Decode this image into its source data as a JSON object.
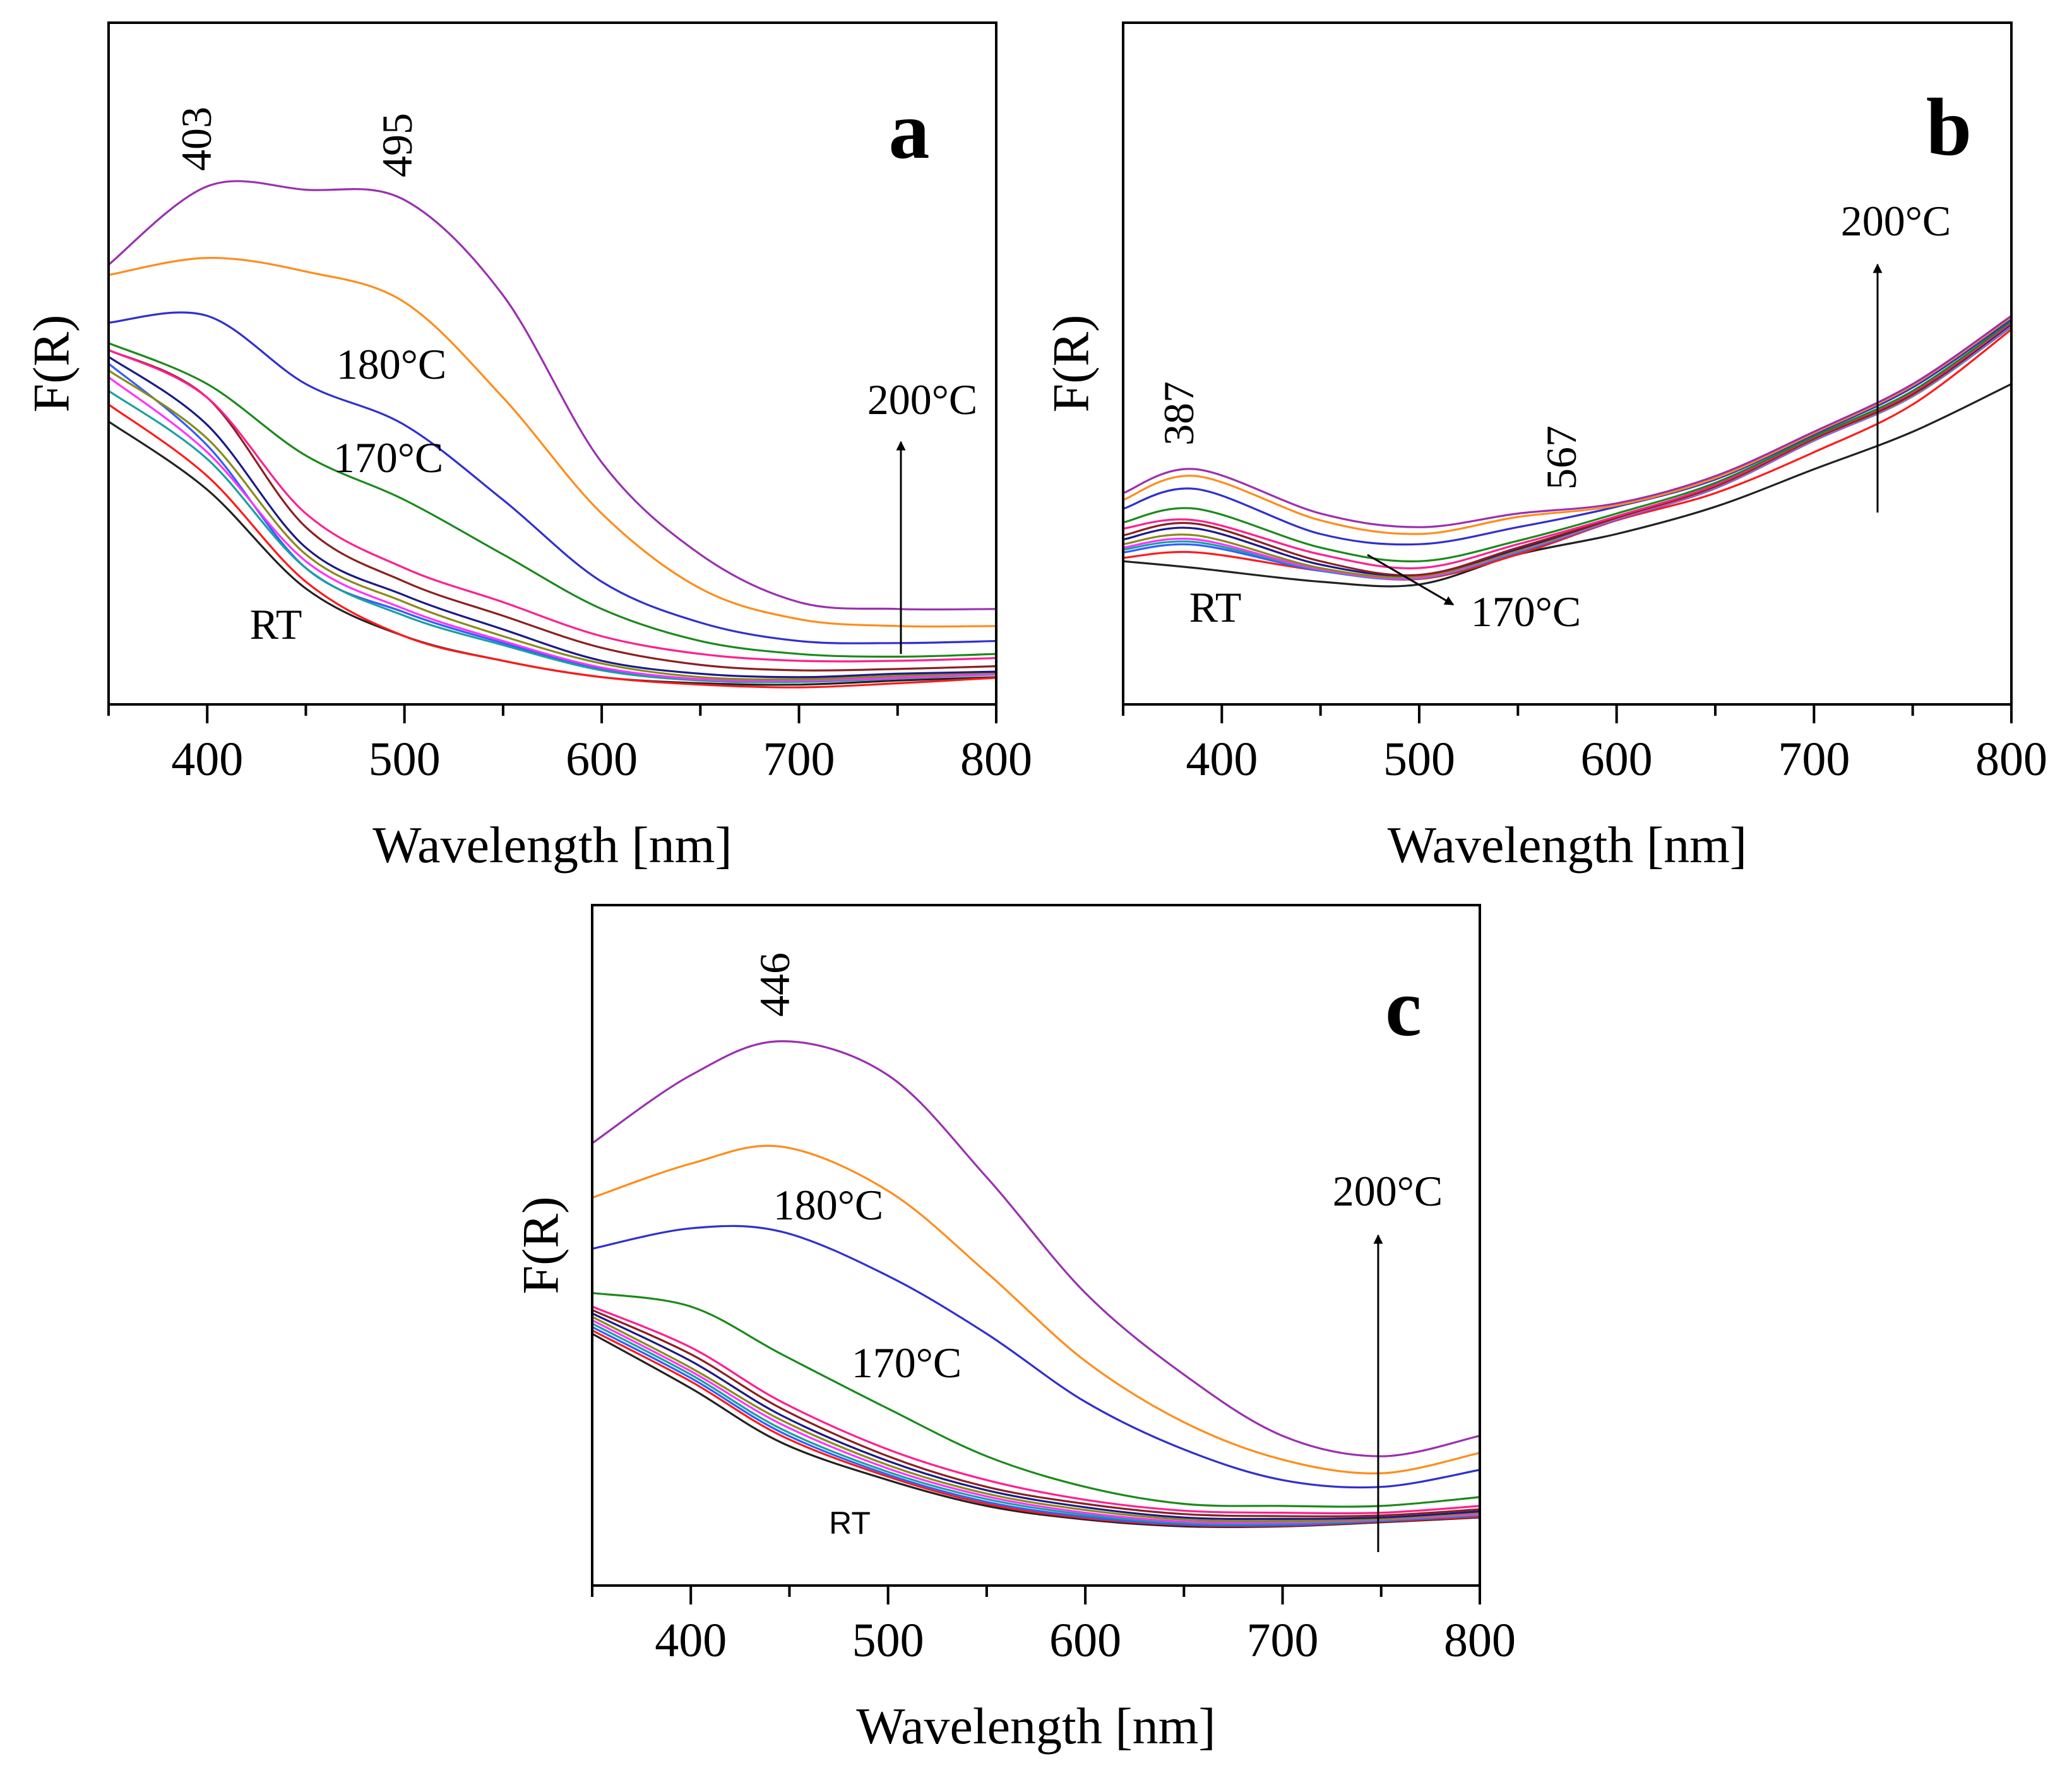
{
  "colors": [
    "#9b30b0",
    "#ff8c1a",
    "#3030d0",
    "#1a8a1a",
    "#ff1f8f",
    "#8b2020",
    "#1a1a8a",
    "#8a8a1a",
    "#ff33ff",
    "#1aa0a0",
    "#2f5fff",
    "#ff1a1a",
    "#222222"
  ],
  "chart_data": [
    {
      "type": "line",
      "panel_label": "a",
      "xlabel": "Wavelength [nm]",
      "ylabel": "F(R)",
      "xlim": [
        350,
        800
      ],
      "ylim": [
        0,
        1
      ],
      "xticks": [
        400,
        500,
        600,
        700,
        800
      ],
      "annotations": {
        "peak1": "403",
        "peak2": "495",
        "t180": "180°C",
        "t170": "170°C",
        "t200": "200°C",
        "rt": "RT"
      },
      "x": [
        350,
        400,
        450,
        500,
        550,
        600,
        650,
        700,
        750,
        800
      ],
      "series": [
        {
          "values": [
            0.645,
            0.76,
            0.755,
            0.74,
            0.6,
            0.355,
            0.22,
            0.15,
            0.14,
            0.14
          ]
        },
        {
          "values": [
            0.63,
            0.655,
            0.635,
            0.59,
            0.45,
            0.28,
            0.17,
            0.125,
            0.115,
            0.115
          ]
        },
        {
          "values": [
            0.56,
            0.57,
            0.47,
            0.41,
            0.3,
            0.18,
            0.12,
            0.093,
            0.09,
            0.093
          ]
        },
        {
          "values": [
            0.53,
            0.47,
            0.365,
            0.3,
            0.22,
            0.14,
            0.093,
            0.074,
            0.07,
            0.074
          ]
        },
        {
          "values": [
            0.52,
            0.45,
            0.28,
            0.2,
            0.15,
            0.1,
            0.074,
            0.064,
            0.064,
            0.068
          ]
        },
        {
          "values": [
            0.52,
            0.45,
            0.26,
            0.18,
            0.13,
            0.083,
            0.058,
            0.05,
            0.052,
            0.056
          ]
        },
        {
          "values": [
            0.51,
            0.41,
            0.23,
            0.16,
            0.11,
            0.064,
            0.045,
            0.04,
            0.045,
            0.048
          ]
        },
        {
          "values": [
            0.49,
            0.39,
            0.22,
            0.15,
            0.1,
            0.06,
            0.04,
            0.037,
            0.042,
            0.047
          ]
        },
        {
          "values": [
            0.48,
            0.37,
            0.21,
            0.14,
            0.093,
            0.054,
            0.037,
            0.035,
            0.039,
            0.045
          ]
        },
        {
          "values": [
            0.46,
            0.36,
            0.2,
            0.13,
            0.087,
            0.05,
            0.035,
            0.033,
            0.038,
            0.044
          ]
        },
        {
          "values": [
            0.5,
            0.38,
            0.2,
            0.135,
            0.09,
            0.052,
            0.036,
            0.034,
            0.04,
            0.046
          ]
        },
        {
          "values": [
            0.44,
            0.335,
            0.18,
            0.1,
            0.064,
            0.04,
            0.029,
            0.025,
            0.031,
            0.039
          ]
        },
        {
          "values": [
            0.415,
            0.315,
            0.17,
            0.1,
            0.064,
            0.04,
            0.031,
            0.029,
            0.035,
            0.04
          ]
        }
      ]
    },
    {
      "type": "line",
      "panel_label": "b",
      "xlabel": "Wavelength [nm]",
      "ylabel": "F(R)",
      "xlim": [
        350,
        800
      ],
      "ylim": [
        0,
        1
      ],
      "xticks": [
        400,
        500,
        600,
        700,
        800
      ],
      "annotations": {
        "peak1": "387",
        "peak2": "567",
        "t200": "200°C",
        "t170": "170°C",
        "rt": "RT"
      },
      "x": [
        350,
        387,
        450,
        500,
        550,
        600,
        650,
        700,
        750,
        800
      ],
      "series": [
        {
          "values": [
            0.31,
            0.345,
            0.28,
            0.26,
            0.28,
            0.295,
            0.335,
            0.4,
            0.47,
            0.57
          ]
        },
        {
          "values": [
            0.3,
            0.335,
            0.27,
            0.25,
            0.275,
            0.292,
            0.332,
            0.398,
            0.468,
            0.568
          ]
        },
        {
          "values": [
            0.287,
            0.316,
            0.25,
            0.235,
            0.26,
            0.29,
            0.33,
            0.396,
            0.465,
            0.565
          ]
        },
        {
          "values": [
            0.267,
            0.287,
            0.23,
            0.21,
            0.24,
            0.28,
            0.325,
            0.393,
            0.46,
            0.562
          ]
        },
        {
          "values": [
            0.258,
            0.27,
            0.22,
            0.2,
            0.235,
            0.276,
            0.322,
            0.392,
            0.458,
            0.56
          ]
        },
        {
          "values": [
            0.248,
            0.265,
            0.21,
            0.19,
            0.23,
            0.274,
            0.32,
            0.39,
            0.455,
            0.56
          ]
        },
        {
          "values": [
            0.242,
            0.258,
            0.205,
            0.19,
            0.228,
            0.274,
            0.32,
            0.39,
            0.455,
            0.558
          ]
        },
        {
          "values": [
            0.235,
            0.248,
            0.2,
            0.188,
            0.226,
            0.273,
            0.319,
            0.389,
            0.454,
            0.557
          ]
        },
        {
          "values": [
            0.23,
            0.242,
            0.198,
            0.186,
            0.225,
            0.272,
            0.318,
            0.388,
            0.453,
            0.556
          ]
        },
        {
          "values": [
            0.227,
            0.238,
            0.197,
            0.185,
            0.224,
            0.272,
            0.318,
            0.388,
            0.452,
            0.555
          ]
        },
        {
          "values": [
            0.223,
            0.234,
            0.196,
            0.185,
            0.223,
            0.271,
            0.317,
            0.387,
            0.452,
            0.554
          ]
        },
        {
          "values": [
            0.215,
            0.223,
            0.196,
            0.184,
            0.22,
            0.27,
            0.31,
            0.37,
            0.44,
            0.55
          ]
        },
        {
          "values": [
            0.21,
            0.2,
            0.18,
            0.176,
            0.22,
            0.25,
            0.29,
            0.345,
            0.4,
            0.47
          ]
        }
      ]
    },
    {
      "type": "line",
      "panel_label": "c",
      "xlabel": "Wavelength [nm]",
      "ylabel": "F(R)",
      "xlim": [
        350,
        800
      ],
      "ylim": [
        0,
        1
      ],
      "xticks": [
        400,
        500,
        600,
        700,
        800
      ],
      "annotations": {
        "peak1": "446",
        "t180": "180°C",
        "t170": "170°C",
        "t200": "200°C",
        "rt": "RT"
      },
      "x": [
        350,
        400,
        446,
        500,
        550,
        600,
        650,
        700,
        750,
        800
      ],
      "series": [
        {
          "values": [
            0.65,
            0.75,
            0.8,
            0.75,
            0.6,
            0.43,
            0.31,
            0.22,
            0.19,
            0.22
          ]
        },
        {
          "values": [
            0.57,
            0.62,
            0.645,
            0.58,
            0.46,
            0.33,
            0.24,
            0.185,
            0.165,
            0.195
          ]
        },
        {
          "values": [
            0.495,
            0.525,
            0.52,
            0.455,
            0.37,
            0.27,
            0.2,
            0.155,
            0.145,
            0.17
          ]
        },
        {
          "values": [
            0.43,
            0.41,
            0.34,
            0.26,
            0.19,
            0.145,
            0.12,
            0.117,
            0.117,
            0.13
          ]
        },
        {
          "values": [
            0.41,
            0.35,
            0.27,
            0.2,
            0.155,
            0.126,
            0.11,
            0.107,
            0.107,
            0.117
          ]
        },
        {
          "values": [
            0.405,
            0.34,
            0.26,
            0.19,
            0.145,
            0.12,
            0.105,
            0.102,
            0.103,
            0.112
          ]
        },
        {
          "values": [
            0.4,
            0.33,
            0.25,
            0.183,
            0.14,
            0.115,
            0.1,
            0.098,
            0.1,
            0.109
          ]
        },
        {
          "values": [
            0.395,
            0.32,
            0.243,
            0.177,
            0.135,
            0.111,
            0.097,
            0.095,
            0.098,
            0.107
          ]
        },
        {
          "values": [
            0.39,
            0.315,
            0.237,
            0.172,
            0.131,
            0.107,
            0.094,
            0.093,
            0.097,
            0.105
          ]
        },
        {
          "values": [
            0.385,
            0.31,
            0.23,
            0.167,
            0.127,
            0.104,
            0.092,
            0.091,
            0.096,
            0.104
          ]
        },
        {
          "values": [
            0.38,
            0.305,
            0.225,
            0.163,
            0.123,
            0.101,
            0.09,
            0.089,
            0.095,
            0.103
          ]
        },
        {
          "values": [
            0.375,
            0.3,
            0.22,
            0.16,
            0.12,
            0.099,
            0.089,
            0.088,
            0.094,
            0.101
          ]
        },
        {
          "values": [
            0.37,
            0.29,
            0.21,
            0.155,
            0.117,
            0.097,
            0.087,
            0.087,
            0.093,
            0.1
          ]
        }
      ]
    }
  ]
}
